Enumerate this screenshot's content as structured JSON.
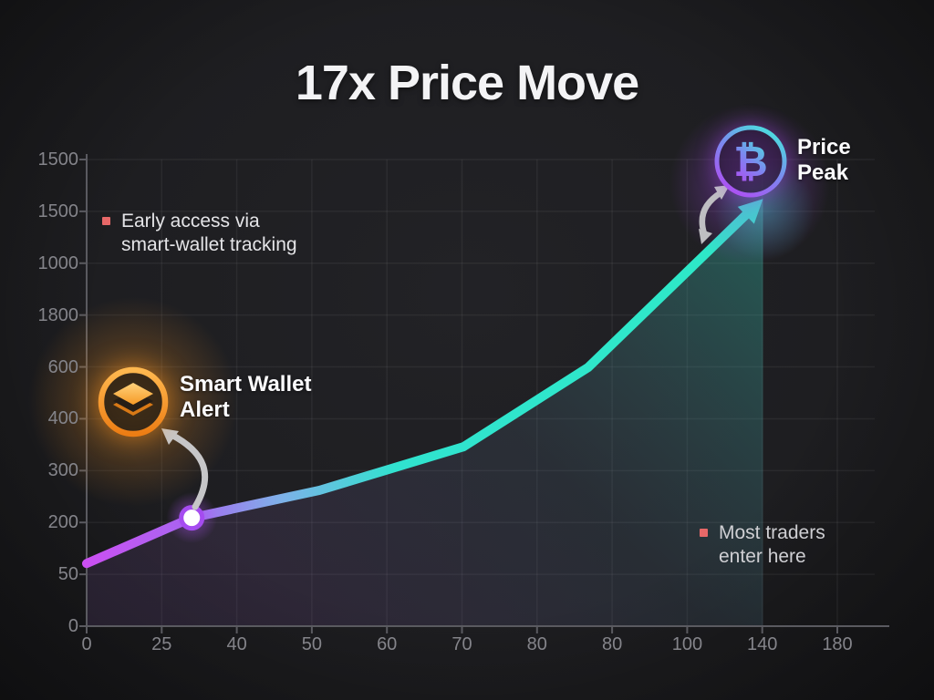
{
  "title": "17x Price Move",
  "annotations": {
    "early_access": {
      "lines": [
        "Early access via",
        "smart-wallet tracking"
      ]
    },
    "smart_wallet": {
      "lines": [
        "Smart Wallet",
        "Alert"
      ]
    },
    "price_peak": {
      "lines": [
        "Price",
        "Peak"
      ],
      "symbol": "₿"
    },
    "most_traders": {
      "lines": [
        "Most traders",
        "enter here"
      ]
    }
  },
  "colors": {
    "background": "#1e1e21",
    "accent_purple": "#cb4ff2",
    "accent_cyan": "#2ee9c6",
    "accent_orange": "#f5941e",
    "bullet_red": "#e76868",
    "marker_ring": "#a54cf0",
    "arrow_gray": "#c6c6c8",
    "axis_text": "#84848a"
  },
  "chart_data": {
    "type": "line",
    "title": "17x Price Move",
    "x_tick_labels": [
      "0",
      "25",
      "40",
      "50",
      "60",
      "70",
      "80",
      "80",
      "100",
      "140",
      "180"
    ],
    "y_tick_labels_top_to_bottom": [
      "1500",
      "1500",
      "1000",
      "1800",
      "600",
      "400",
      "300",
      "200",
      "50",
      "0"
    ],
    "grid": true,
    "legend": "none",
    "points_axis_units": [
      [
        0,
        1.21
      ],
      [
        1.4,
        2.09
      ],
      [
        3.1,
        2.62
      ],
      [
        5.02,
        3.46
      ],
      [
        6.68,
        4.99
      ],
      [
        8.78,
        7.93
      ]
    ],
    "arrow_tip_axis_units": [
      9.01,
      8.24
    ],
    "marker_point_index": 1,
    "fill_to_baseline": true,
    "fill_right_edge_axis_x": 9.01
  }
}
